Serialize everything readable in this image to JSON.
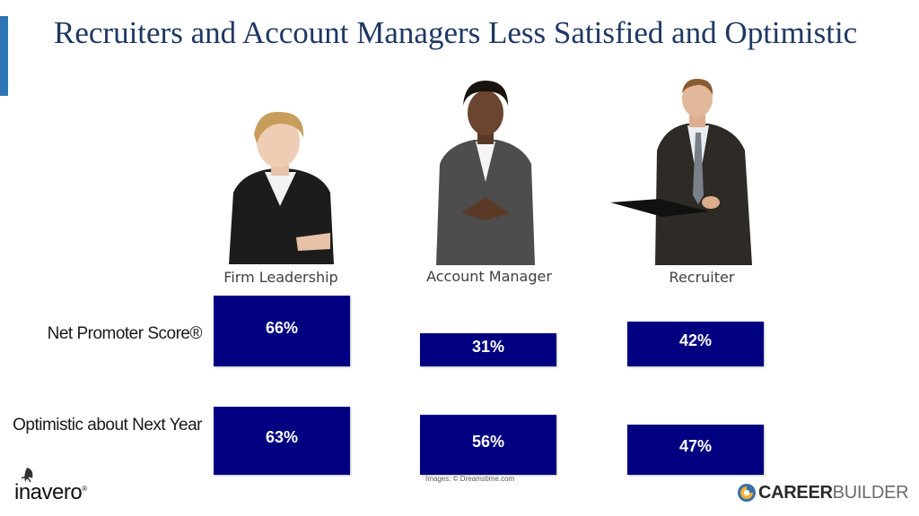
{
  "title": "Recruiters and Account Managers Less Satisfied and Optimistic",
  "personas": [
    {
      "label": "Firm Leadership"
    },
    {
      "label": "Account Manager"
    },
    {
      "label": "Recruiter"
    }
  ],
  "rows": [
    {
      "label": "Net Promoter Score®"
    },
    {
      "label": "Optimistic about Next Year"
    }
  ],
  "credit": "Images: © Dreamstime.com",
  "logos": {
    "left": "inavero",
    "right_bold": "CAREER",
    "right_light": "BUILDER"
  },
  "colors": {
    "bar": "#000080",
    "accent": "#2e75b6",
    "title": "#1f3864"
  },
  "chart_data": {
    "type": "bar",
    "categories": [
      "Firm Leadership",
      "Account Manager",
      "Recruiter"
    ],
    "series": [
      {
        "name": "Net Promoter Score®",
        "values": [
          66,
          31,
          42
        ],
        "labels": [
          "66%",
          "31%",
          "42%"
        ]
      },
      {
        "name": "Optimistic about Next Year",
        "values": [
          63,
          56,
          47
        ],
        "labels": [
          "63%",
          "56%",
          "47%"
        ]
      }
    ],
    "unit": "%"
  }
}
